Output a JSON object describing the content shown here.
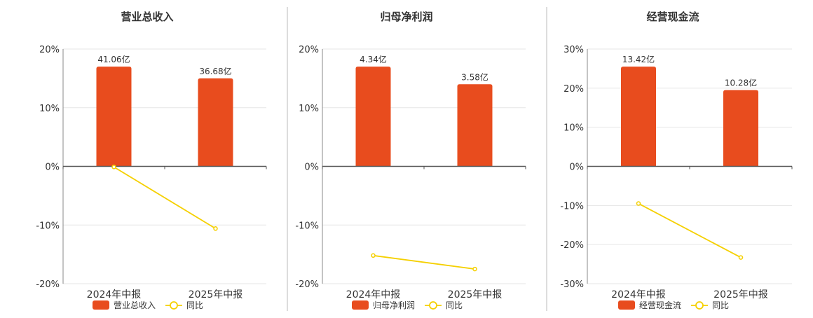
{
  "colors": {
    "bar": "#E84C1E",
    "line": "#F5D000",
    "grid": "#E6E6E6",
    "axis": "#555555",
    "text": "#333333",
    "divider": "#BBBBBB"
  },
  "chart_data": [
    {
      "type": "bar",
      "title": "营业总收入",
      "categories": [
        "2024年中报",
        "2025年中报"
      ],
      "ylim": [
        -20,
        20
      ],
      "yticks": [
        -20,
        -10,
        0,
        10,
        20
      ],
      "tick_labels": [
        "-20%",
        "-10%",
        "0%",
        "10%",
        "20%"
      ],
      "series": [
        {
          "name": "营业总收入",
          "type": "bar",
          "values": [
            17,
            15
          ],
          "labels": [
            "41.06亿",
            "36.68亿"
          ]
        },
        {
          "name": "同比",
          "type": "line",
          "values": [
            -0.1,
            -10.6
          ]
        }
      ],
      "legend": "bottom"
    },
    {
      "type": "bar",
      "title": "归母净利润",
      "categories": [
        "2024年中报",
        "2025年中报"
      ],
      "ylim": [
        -20,
        20
      ],
      "yticks": [
        -20,
        -10,
        0,
        10,
        20
      ],
      "tick_labels": [
        "-20%",
        "-10%",
        "0%",
        "10%",
        "20%"
      ],
      "series": [
        {
          "name": "归母净利润",
          "type": "bar",
          "values": [
            17,
            14
          ],
          "labels": [
            "4.34亿",
            "3.58亿"
          ]
        },
        {
          "name": "同比",
          "type": "line",
          "values": [
            -15.2,
            -17.5
          ]
        }
      ],
      "legend": "bottom"
    },
    {
      "type": "bar",
      "title": "经营现金流",
      "categories": [
        "2024年中报",
        "2025年中报"
      ],
      "ylim": [
        -30,
        30
      ],
      "yticks": [
        -30,
        -20,
        -10,
        0,
        10,
        20,
        30
      ],
      "tick_labels": [
        "-30%",
        "-20%",
        "-10%",
        "0%",
        "10%",
        "20%",
        "30%"
      ],
      "series": [
        {
          "name": "经营现金流",
          "type": "bar",
          "values": [
            25.5,
            19.5
          ],
          "labels": [
            "13.42亿",
            "10.28亿"
          ]
        },
        {
          "name": "同比",
          "type": "line",
          "values": [
            -9.5,
            -23.3
          ]
        }
      ],
      "legend": "bottom"
    }
  ]
}
